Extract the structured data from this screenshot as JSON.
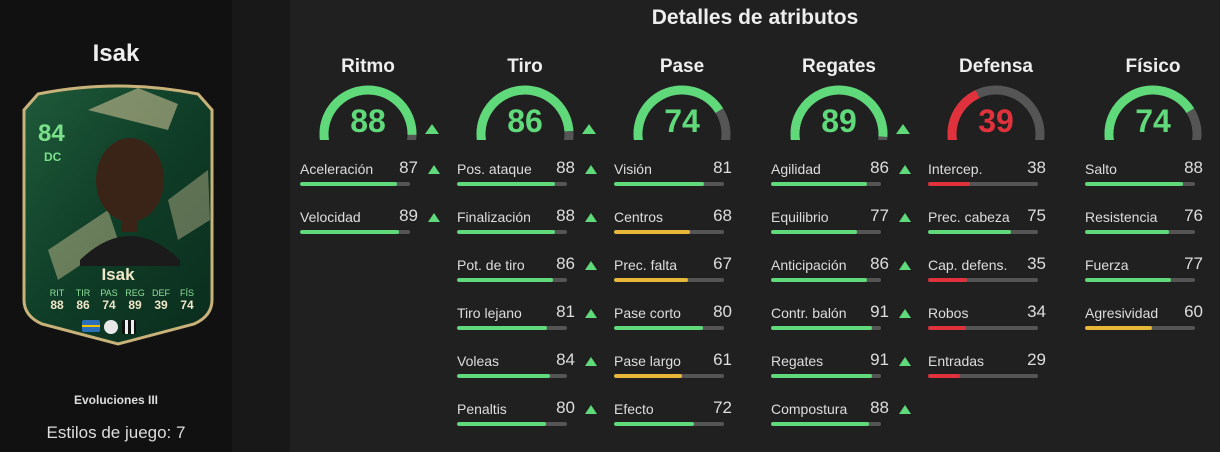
{
  "player": {
    "name": "Isak",
    "card": {
      "rating": "84",
      "position": "DC",
      "name": "Isak",
      "stats": [
        {
          "label": "RIT",
          "value": "88"
        },
        {
          "label": "TIR",
          "value": "86"
        },
        {
          "label": "PAS",
          "value": "74"
        },
        {
          "label": "REG",
          "value": "89"
        },
        {
          "label": "DEF",
          "value": "39"
        },
        {
          "label": "FÍS",
          "value": "74"
        }
      ]
    },
    "evolution": "Evoluciones III",
    "playstyles": "Estilos de juego: 7"
  },
  "title": "Detalles de atributos",
  "colors": {
    "green": "#5fd97a",
    "yellow": "#e8b73a",
    "red": "#e0323c",
    "track": "#555555"
  },
  "categories": [
    {
      "name": "Ritmo",
      "value": "88",
      "color": "#5fd97a",
      "arrow": true,
      "attributes": [
        {
          "name": "Aceleración",
          "value": "87",
          "color": "#5fd97a",
          "arrow": true
        },
        {
          "name": "Velocidad",
          "value": "89",
          "color": "#5fd97a",
          "arrow": true
        }
      ]
    },
    {
      "name": "Tiro",
      "value": "86",
      "color": "#5fd97a",
      "arrow": true,
      "attributes": [
        {
          "name": "Pos. ataque",
          "value": "88",
          "color": "#5fd97a",
          "arrow": true
        },
        {
          "name": "Finalización",
          "value": "88",
          "color": "#5fd97a",
          "arrow": true
        },
        {
          "name": "Pot. de tiro",
          "value": "86",
          "color": "#5fd97a",
          "arrow": true
        },
        {
          "name": "Tiro lejano",
          "value": "81",
          "color": "#5fd97a",
          "arrow": true
        },
        {
          "name": "Voleas",
          "value": "84",
          "color": "#5fd97a",
          "arrow": true
        },
        {
          "name": "Penaltis",
          "value": "80",
          "color": "#5fd97a",
          "arrow": true
        }
      ]
    },
    {
      "name": "Pase",
      "value": "74",
      "color": "#5fd97a",
      "arrow": false,
      "attributes": [
        {
          "name": "Visión",
          "value": "81",
          "color": "#5fd97a",
          "arrow": false
        },
        {
          "name": "Centros",
          "value": "68",
          "color": "#e8b73a",
          "arrow": false
        },
        {
          "name": "Prec. falta",
          "value": "67",
          "color": "#e8b73a",
          "arrow": false
        },
        {
          "name": "Pase corto",
          "value": "80",
          "color": "#5fd97a",
          "arrow": false
        },
        {
          "name": "Pase largo",
          "value": "61",
          "color": "#e8b73a",
          "arrow": false
        },
        {
          "name": "Efecto",
          "value": "72",
          "color": "#5fd97a",
          "arrow": false
        }
      ]
    },
    {
      "name": "Regates",
      "value": "89",
      "color": "#5fd97a",
      "arrow": true,
      "attributes": [
        {
          "name": "Agilidad",
          "value": "86",
          "color": "#5fd97a",
          "arrow": true
        },
        {
          "name": "Equilibrio",
          "value": "77",
          "color": "#5fd97a",
          "arrow": true
        },
        {
          "name": "Anticipación",
          "value": "86",
          "color": "#5fd97a",
          "arrow": true
        },
        {
          "name": "Contr. balón",
          "value": "91",
          "color": "#5fd97a",
          "arrow": true
        },
        {
          "name": "Regates",
          "value": "91",
          "color": "#5fd97a",
          "arrow": true
        },
        {
          "name": "Compostura",
          "value": "88",
          "color": "#5fd97a",
          "arrow": true
        }
      ]
    },
    {
      "name": "Defensa",
      "value": "39",
      "color": "#e0323c",
      "arrow": false,
      "attributes": [
        {
          "name": "Intercep.",
          "value": "38",
          "color": "#e0323c",
          "arrow": false
        },
        {
          "name": "Prec. cabeza",
          "value": "75",
          "color": "#5fd97a",
          "arrow": false
        },
        {
          "name": "Cap. defens.",
          "value": "35",
          "color": "#e0323c",
          "arrow": false
        },
        {
          "name": "Robos",
          "value": "34",
          "color": "#e0323c",
          "arrow": false
        },
        {
          "name": "Entradas",
          "value": "29",
          "color": "#e0323c",
          "arrow": false
        }
      ]
    },
    {
      "name": "Físico",
      "value": "74",
      "color": "#5fd97a",
      "arrow": false,
      "attributes": [
        {
          "name": "Salto",
          "value": "88",
          "color": "#5fd97a",
          "arrow": false
        },
        {
          "name": "Resistencia",
          "value": "76",
          "color": "#5fd97a",
          "arrow": false
        },
        {
          "name": "Fuerza",
          "value": "77",
          "color": "#5fd97a",
          "arrow": false
        },
        {
          "name": "Agresividad",
          "value": "60",
          "color": "#e8b73a",
          "arrow": false
        }
      ]
    }
  ]
}
